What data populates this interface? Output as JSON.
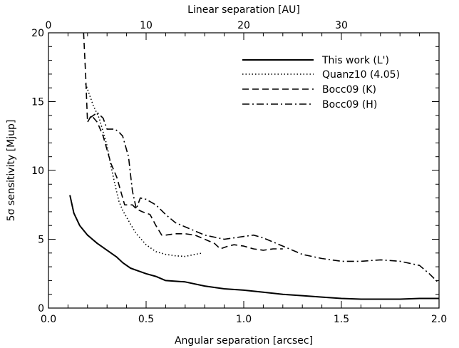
{
  "chart_data": {
    "type": "line",
    "title": "",
    "xlabel": "Angular separation [arcsec]",
    "ylabel": "5σ sensitivity [Mjup]",
    "x2label": "Linear separation [AU]",
    "xlim": [
      0.0,
      2.0
    ],
    "ylim": [
      0,
      20
    ],
    "x2lim": [
      0,
      40
    ],
    "xticks": [
      "0.0",
      "0.5",
      "1.0",
      "1.5",
      "2.0"
    ],
    "yticks": [
      "0",
      "5",
      "10",
      "15",
      "20"
    ],
    "x2ticks": [
      "0",
      "10",
      "20",
      "30"
    ],
    "grid": false,
    "legend_position": "top-right",
    "series": [
      {
        "name": "This work (L')",
        "style": "solid",
        "x": [
          0.11,
          0.13,
          0.16,
          0.2,
          0.25,
          0.3,
          0.35,
          0.38,
          0.42,
          0.46,
          0.5,
          0.55,
          0.6,
          0.7,
          0.8,
          0.9,
          1.0,
          1.1,
          1.2,
          1.3,
          1.4,
          1.5,
          1.6,
          1.7,
          1.8,
          1.9,
          2.0
        ],
        "y": [
          8.2,
          6.9,
          6.0,
          5.3,
          4.7,
          4.2,
          3.7,
          3.3,
          2.9,
          2.7,
          2.5,
          2.3,
          2.0,
          1.9,
          1.6,
          1.4,
          1.3,
          1.15,
          1.0,
          0.9,
          0.8,
          0.7,
          0.65,
          0.65,
          0.65,
          0.7,
          0.7
        ]
      },
      {
        "name": "Quanz10 (4.05)",
        "style": "dotted",
        "x": [
          0.19,
          0.21,
          0.23,
          0.26,
          0.28,
          0.3,
          0.32,
          0.34,
          0.36,
          0.38,
          0.4,
          0.42,
          0.45,
          0.5,
          0.55,
          0.6,
          0.65,
          0.7,
          0.75,
          0.79
        ],
        "y": [
          16.3,
          15.5,
          14.7,
          13.8,
          12.8,
          11.8,
          10.3,
          9.0,
          7.8,
          7.1,
          6.6,
          6.1,
          5.4,
          4.6,
          4.1,
          3.9,
          3.8,
          3.75,
          3.9,
          4.0
        ]
      },
      {
        "name": "Bocc09 (K)",
        "style": "dashed",
        "x": [
          0.18,
          0.19,
          0.2,
          0.22,
          0.25,
          0.28,
          0.3,
          0.32,
          0.35,
          0.37,
          0.39,
          0.41,
          0.43,
          0.45,
          0.48,
          0.52,
          0.55,
          0.58,
          0.6,
          0.65,
          0.7,
          0.75,
          0.8,
          0.85,
          0.88,
          0.92,
          0.95,
          1.0,
          1.05,
          1.1,
          1.15,
          1.2
        ],
        "y": [
          20.0,
          17.0,
          13.5,
          14.0,
          13.5,
          12.5,
          11.5,
          10.5,
          9.5,
          8.5,
          7.5,
          7.5,
          7.5,
          7.2,
          7.0,
          6.8,
          6.0,
          5.3,
          5.3,
          5.4,
          5.4,
          5.3,
          5.0,
          4.7,
          4.3,
          4.5,
          4.6,
          4.5,
          4.3,
          4.2,
          4.3,
          4.3
        ]
      },
      {
        "name": "Bocc09 (H)",
        "style": "dashdot",
        "x": [
          0.21,
          0.23,
          0.25,
          0.28,
          0.3,
          0.32,
          0.34,
          0.36,
          0.38,
          0.41,
          0.43,
          0.45,
          0.47,
          0.5,
          0.55,
          0.6,
          0.65,
          0.7,
          0.75,
          0.8,
          0.9,
          1.0,
          1.05,
          1.1,
          1.2,
          1.3,
          1.4,
          1.5,
          1.6,
          1.7,
          1.8,
          1.9,
          1.95,
          2.0
        ],
        "y": [
          13.8,
          14.0,
          14.2,
          13.8,
          13.0,
          13.0,
          13.0,
          12.8,
          12.5,
          11.0,
          8.5,
          7.2,
          8.0,
          7.9,
          7.5,
          6.8,
          6.2,
          5.9,
          5.6,
          5.3,
          5.0,
          5.2,
          5.3,
          5.1,
          4.5,
          3.9,
          3.6,
          3.4,
          3.4,
          3.5,
          3.4,
          3.1,
          2.5,
          1.8
        ]
      }
    ]
  }
}
